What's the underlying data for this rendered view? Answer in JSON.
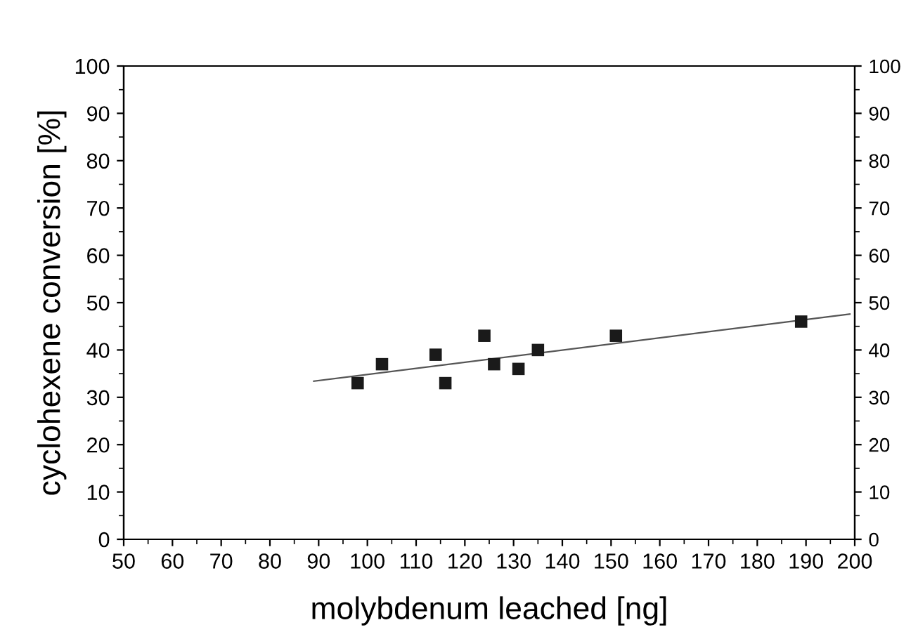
{
  "chart_data": {
    "type": "scatter",
    "xlabel": "molybdenum leached [ng]",
    "ylabel": "cyclohexene conversion [%]",
    "xlim": [
      50,
      200
    ],
    "xticks": [
      50,
      60,
      70,
      80,
      90,
      100,
      110,
      120,
      130,
      140,
      150,
      160,
      170,
      180,
      190,
      200
    ],
    "ylim": [
      0,
      100
    ],
    "yticks": [
      0,
      10,
      20,
      30,
      40,
      50,
      60,
      70,
      80,
      90,
      100
    ],
    "y2lim": [
      0,
      100
    ],
    "y2ticks": [
      0,
      10,
      20,
      30,
      40,
      50,
      60,
      70,
      80,
      90,
      100
    ],
    "grid": false,
    "legend": false,
    "marker": "square",
    "series": [
      {
        "color": "#1a1a1a",
        "x": [
          98,
          103,
          114,
          116,
          124,
          126,
          131,
          135,
          151,
          189
        ],
        "values": [
          33,
          37,
          39,
          33,
          43,
          37,
          36,
          40,
          43,
          46
        ]
      },
      {
        "type": "line",
        "color": "#555555",
        "marker": "none",
        "line_style": "solid",
        "x": [
          89,
          199
        ],
        "values": [
          33.4,
          47.6
        ]
      }
    ]
  }
}
